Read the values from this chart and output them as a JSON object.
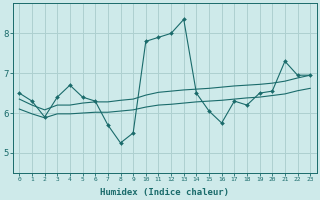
{
  "xlabel": "Humidex (Indice chaleur)",
  "ylabel": "",
  "background_color": "#ceeaea",
  "grid_color": "#aed0d0",
  "line_color": "#1a6b6b",
  "xlim": [
    -0.5,
    23.5
  ],
  "ylim": [
    4.5,
    8.75
  ],
  "xticks": [
    0,
    1,
    2,
    3,
    4,
    5,
    6,
    7,
    8,
    9,
    10,
    11,
    12,
    13,
    14,
    15,
    16,
    17,
    18,
    19,
    20,
    21,
    22,
    23
  ],
  "yticks": [
    5,
    6,
    7,
    8
  ],
  "line1_x": [
    0,
    1,
    2,
    3,
    4,
    5,
    6,
    7,
    8,
    9,
    10,
    11,
    12,
    13,
    14,
    15,
    16,
    17,
    18,
    19,
    20,
    21,
    22,
    23
  ],
  "line1_y": [
    6.5,
    6.3,
    5.9,
    6.4,
    6.7,
    6.4,
    6.3,
    5.7,
    5.25,
    5.5,
    7.8,
    7.9,
    8.0,
    8.35,
    6.5,
    6.05,
    5.75,
    6.3,
    6.2,
    6.5,
    6.55,
    7.3,
    6.95,
    6.95
  ],
  "line2_x": [
    0,
    1,
    2,
    3,
    4,
    5,
    6,
    7,
    8,
    9,
    10,
    11,
    12,
    13,
    14,
    15,
    16,
    17,
    18,
    19,
    20,
    21,
    22,
    23
  ],
  "line2_y": [
    6.35,
    6.2,
    6.08,
    6.2,
    6.2,
    6.25,
    6.28,
    6.28,
    6.32,
    6.35,
    6.45,
    6.52,
    6.55,
    6.58,
    6.6,
    6.62,
    6.65,
    6.68,
    6.7,
    6.72,
    6.75,
    6.8,
    6.88,
    6.95
  ],
  "line3_x": [
    0,
    1,
    2,
    3,
    4,
    5,
    6,
    7,
    8,
    9,
    10,
    11,
    12,
    13,
    14,
    15,
    16,
    17,
    18,
    19,
    20,
    21,
    22,
    23
  ],
  "line3_y": [
    6.1,
    5.98,
    5.88,
    5.98,
    5.98,
    6.0,
    6.02,
    6.02,
    6.05,
    6.08,
    6.15,
    6.2,
    6.22,
    6.25,
    6.28,
    6.3,
    6.32,
    6.35,
    6.38,
    6.4,
    6.44,
    6.48,
    6.56,
    6.62
  ]
}
